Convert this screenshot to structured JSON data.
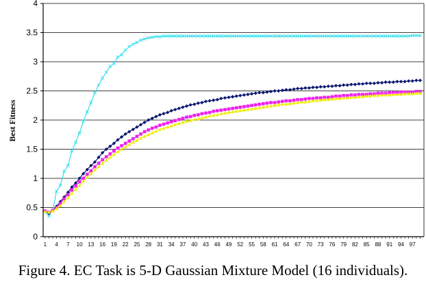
{
  "caption": "Figure 4. EC Task is 5-D Gaussian Mixture Model (16 individuals).",
  "chart_data": {
    "type": "line",
    "title": "",
    "xlabel": "",
    "ylabel": "Best Fitness",
    "ylim": [
      0,
      4
    ],
    "yticks": [
      "0",
      "0.5",
      "1",
      "1.5",
      "2",
      "2.5",
      "3",
      "3.5",
      "4"
    ],
    "x": [
      1,
      2,
      3,
      4,
      5,
      6,
      7,
      8,
      9,
      10,
      11,
      12,
      13,
      14,
      15,
      16,
      17,
      18,
      19,
      20,
      21,
      22,
      23,
      24,
      25,
      26,
      27,
      28,
      29,
      30,
      31,
      32,
      33,
      34,
      35,
      36,
      37,
      38,
      39,
      40,
      41,
      42,
      43,
      44,
      45,
      46,
      47,
      48,
      49,
      50,
      51,
      52,
      53,
      54,
      55,
      56,
      57,
      58,
      59,
      60,
      61,
      62,
      63,
      64,
      65,
      66,
      67,
      68,
      69,
      70,
      71,
      72,
      73,
      74,
      75,
      76,
      77,
      78,
      79,
      80,
      81,
      82,
      83,
      84,
      85,
      86,
      87,
      88,
      89,
      90,
      91,
      92,
      93,
      94,
      95,
      96,
      97,
      98,
      99
    ],
    "xtick_labels": [
      "1",
      "4",
      "7",
      "10",
      "13",
      "16",
      "19",
      "22",
      "25",
      "28",
      "31",
      "34",
      "37",
      "40",
      "43",
      "46",
      "49",
      "52",
      "55",
      "58",
      "61",
      "64",
      "67",
      "70",
      "73",
      "76",
      "79",
      "82",
      "85",
      "88",
      "91",
      "94",
      "97"
    ],
    "grid": "horizontal",
    "legend": "none",
    "series": [
      {
        "color": "#33e0ee",
        "marker": "x",
        "values": [
          0.44,
          0.35,
          0.45,
          0.78,
          0.88,
          1.12,
          1.22,
          1.47,
          1.62,
          1.78,
          1.98,
          2.14,
          2.3,
          2.47,
          2.6,
          2.72,
          2.82,
          2.92,
          2.97,
          3.08,
          3.12,
          3.2,
          3.26,
          3.3,
          3.33,
          3.37,
          3.39,
          3.41,
          3.42,
          3.43,
          3.43,
          3.44,
          3.44,
          3.44,
          3.44,
          3.44,
          3.44,
          3.44,
          3.44,
          3.44,
          3.44,
          3.44,
          3.44,
          3.44,
          3.44,
          3.44,
          3.44,
          3.44,
          3.44,
          3.44,
          3.44,
          3.44,
          3.44,
          3.44,
          3.44,
          3.44,
          3.44,
          3.44,
          3.44,
          3.44,
          3.44,
          3.44,
          3.44,
          3.44,
          3.44,
          3.44,
          3.44,
          3.44,
          3.44,
          3.44,
          3.44,
          3.44,
          3.44,
          3.44,
          3.44,
          3.44,
          3.44,
          3.44,
          3.44,
          3.44,
          3.44,
          3.44,
          3.44,
          3.44,
          3.44,
          3.44,
          3.44,
          3.44,
          3.44,
          3.44,
          3.44,
          3.44,
          3.44,
          3.44,
          3.44,
          3.44,
          3.45,
          3.45,
          3.45
        ]
      },
      {
        "color": "#0a1670",
        "marker": "diamond",
        "values": [
          0.43,
          0.4,
          0.45,
          0.52,
          0.6,
          0.68,
          0.76,
          0.85,
          0.92,
          1.0,
          1.08,
          1.15,
          1.22,
          1.28,
          1.36,
          1.44,
          1.5,
          1.55,
          1.6,
          1.66,
          1.71,
          1.76,
          1.8,
          1.84,
          1.88,
          1.92,
          1.96,
          2.0,
          2.03,
          2.06,
          2.09,
          2.11,
          2.13,
          2.16,
          2.18,
          2.2,
          2.22,
          2.24,
          2.26,
          2.27,
          2.29,
          2.3,
          2.32,
          2.33,
          2.34,
          2.35,
          2.37,
          2.38,
          2.39,
          2.4,
          2.41,
          2.42,
          2.43,
          2.44,
          2.45,
          2.46,
          2.47,
          2.47,
          2.48,
          2.49,
          2.5,
          2.5,
          2.51,
          2.52,
          2.52,
          2.53,
          2.54,
          2.54,
          2.55,
          2.55,
          2.56,
          2.56,
          2.57,
          2.57,
          2.58,
          2.58,
          2.59,
          2.59,
          2.6,
          2.6,
          2.61,
          2.61,
          2.62,
          2.62,
          2.63,
          2.63,
          2.63,
          2.64,
          2.64,
          2.65,
          2.65,
          2.65,
          2.66,
          2.66,
          2.66,
          2.67,
          2.67,
          2.68,
          2.68
        ]
      },
      {
        "color": "#ee22ee",
        "marker": "square",
        "values": [
          0.44,
          0.42,
          0.45,
          0.5,
          0.57,
          0.65,
          0.72,
          0.8,
          0.87,
          0.94,
          1.0,
          1.07,
          1.13,
          1.2,
          1.26,
          1.32,
          1.37,
          1.42,
          1.47,
          1.52,
          1.56,
          1.6,
          1.64,
          1.68,
          1.72,
          1.76,
          1.8,
          1.83,
          1.86,
          1.88,
          1.91,
          1.93,
          1.95,
          1.97,
          1.99,
          2.01,
          2.03,
          2.05,
          2.06,
          2.08,
          2.09,
          2.11,
          2.12,
          2.13,
          2.15,
          2.16,
          2.17,
          2.18,
          2.19,
          2.2,
          2.21,
          2.22,
          2.23,
          2.24,
          2.25,
          2.26,
          2.27,
          2.28,
          2.29,
          2.3,
          2.3,
          2.31,
          2.32,
          2.33,
          2.33,
          2.34,
          2.35,
          2.35,
          2.36,
          2.37,
          2.37,
          2.38,
          2.38,
          2.39,
          2.39,
          2.4,
          2.41,
          2.41,
          2.42,
          2.42,
          2.43,
          2.43,
          2.44,
          2.44,
          2.44,
          2.45,
          2.45,
          2.46,
          2.46,
          2.46,
          2.47,
          2.47,
          2.47,
          2.48,
          2.48,
          2.48,
          2.48,
          2.49,
          2.49
        ]
      },
      {
        "color": "#eeee00",
        "marker": "triangle",
        "values": [
          0.43,
          0.42,
          0.44,
          0.48,
          0.53,
          0.6,
          0.67,
          0.74,
          0.81,
          0.88,
          0.95,
          1.02,
          1.08,
          1.14,
          1.2,
          1.26,
          1.31,
          1.36,
          1.41,
          1.46,
          1.5,
          1.54,
          1.58,
          1.62,
          1.65,
          1.69,
          1.72,
          1.75,
          1.78,
          1.81,
          1.84,
          1.86,
          1.88,
          1.9,
          1.92,
          1.94,
          1.96,
          1.98,
          1.99,
          2.01,
          2.02,
          2.04,
          2.05,
          2.07,
          2.08,
          2.09,
          2.11,
          2.12,
          2.13,
          2.14,
          2.15,
          2.16,
          2.17,
          2.18,
          2.19,
          2.2,
          2.21,
          2.22,
          2.23,
          2.24,
          2.25,
          2.26,
          2.27,
          2.27,
          2.28,
          2.29,
          2.3,
          2.31,
          2.31,
          2.32,
          2.33,
          2.33,
          2.34,
          2.35,
          2.35,
          2.36,
          2.37,
          2.37,
          2.38,
          2.38,
          2.39,
          2.39,
          2.4,
          2.4,
          2.41,
          2.41,
          2.42,
          2.42,
          2.43,
          2.43,
          2.43,
          2.44,
          2.44,
          2.44,
          2.45,
          2.45,
          2.45,
          2.46,
          2.46
        ]
      }
    ]
  }
}
